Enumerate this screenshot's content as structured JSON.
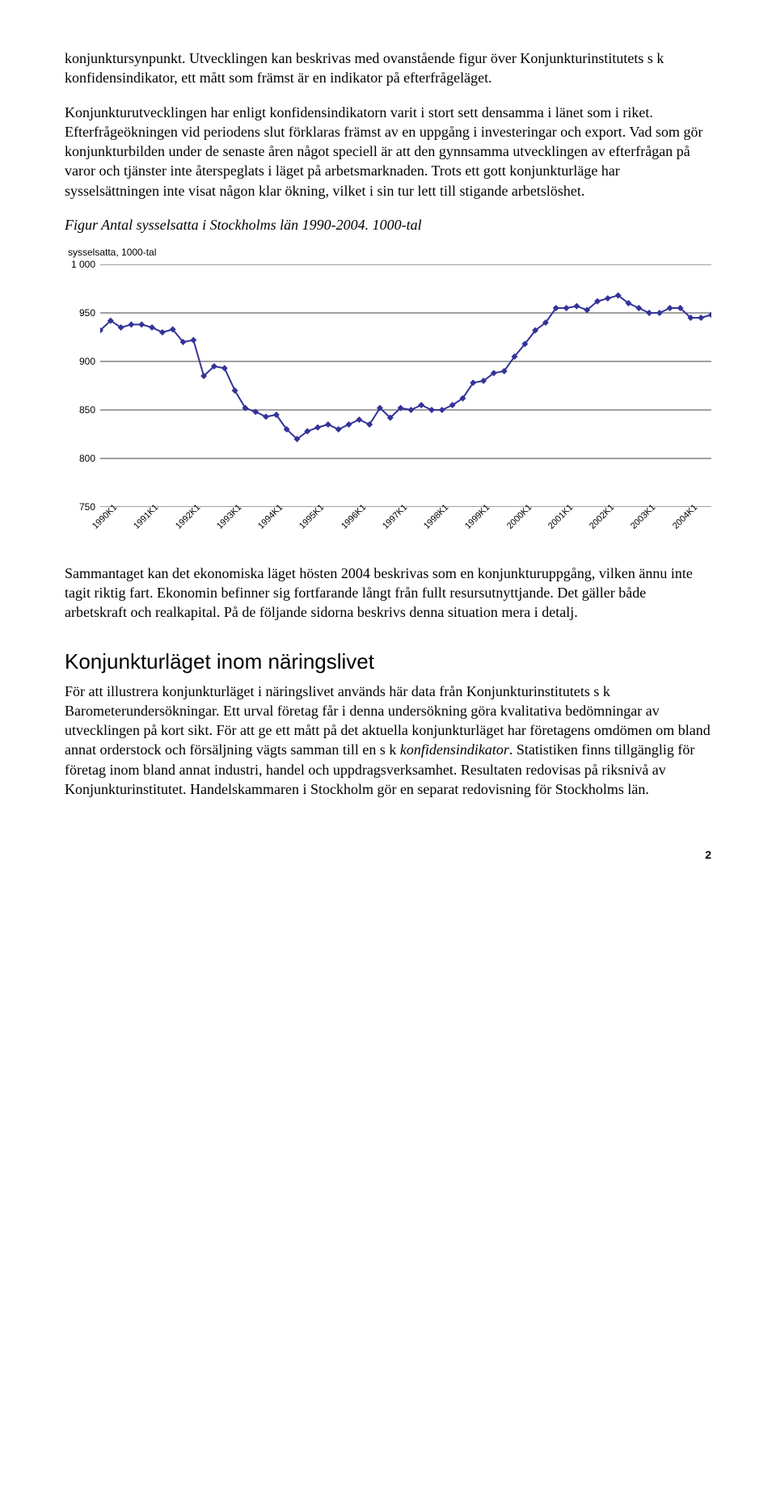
{
  "paragraphs": {
    "p1": "konjunktursynpunkt. Utvecklingen kan beskrivas med ovanstående figur över Konjunkturinstitutets s k konfidensindikator, ett mått som främst är en indikator på efterfrågeläget.",
    "p2": "Konjunkturutvecklingen har enligt konfidensindikatorn varit i stort sett densamma i länet som i riket. Efterfrågeökningen vid periodens slut förklaras främst av en uppgång i investeringar och export. Vad som gör konjunkturbilden under de senaste åren något speciell är att den gynnsamma utvecklingen av efterfrågan på varor och tjänster inte återspeglats i läget på arbetsmarknaden. Trots ett gott konjunkturläge har sysselsättningen inte visat någon klar ökning, vilket i sin tur lett till stigande arbetslöshet.",
    "fig_title": "Figur Antal sysselsatta i Stockholms län 1990-2004. 1000-tal",
    "p3": "Sammantaget kan det ekonomiska läget hösten 2004 beskrivas som en konjunkturuppgång, vilken ännu inte tagit riktig fart. Ekonomin befinner sig fortfarande långt från fullt resursutnyttjande. Det gäller både arbetskraft och realkapital. På de följande sidorna beskrivs denna situation mera i detalj.",
    "h2": "Konjunkturläget inom näringslivet",
    "p4_a": "För att illustrera konjunkturläget i näringslivet används här data från Konjunkturinstitutets s k Barometerundersökningar. Ett urval företag får i denna undersökning göra kvalitativa bedömningar av utvecklingen på kort sikt. För att ge ett mått på det aktuella konjunkturläget har företagens omdömen om bland annat orderstock och försäljning vägts samman till en s k ",
    "p4_italic": "konfidensindikator",
    "p4_b": ". Statistiken finns tillgänglig för företag inom bland annat industri, handel och uppdragsverksamhet. Resultaten redovisas på riksnivå av Konjunkturinstitutet. Handelskammaren i Stockholm gör en separat redovisning för Stockholms län."
  },
  "chart": {
    "type": "line",
    "y_axis_label": "sysselsatta, 1000-tal",
    "ylim": [
      750,
      1000
    ],
    "ytick_step": 50,
    "y_ticks": [
      "750",
      "800",
      "850",
      "900",
      "950",
      "1 000"
    ],
    "x_labels": [
      "1990K1",
      "1991K1",
      "1992K1",
      "1993K1",
      "1994K1",
      "1995K1",
      "1996K1",
      "1997K1",
      "1998K1",
      "1999K1",
      "2000K1",
      "2001K1",
      "2002K1",
      "2003K1",
      "2004K1"
    ],
    "line_color": "#333399",
    "marker_color": "#333399",
    "marker_size": 4,
    "line_width": 2,
    "grid_color": "#000000",
    "background_color": "#ffffff",
    "label_fontsize": 12,
    "values": [
      932,
      942,
      935,
      938,
      938,
      935,
      930,
      933,
      920,
      922,
      885,
      895,
      893,
      870,
      852,
      848,
      843,
      845,
      830,
      820,
      828,
      832,
      835,
      830,
      835,
      840,
      835,
      852,
      842,
      852,
      850,
      855,
      850,
      850,
      855,
      862,
      878,
      880,
      888,
      890,
      905,
      918,
      932,
      940,
      955,
      955,
      957,
      953,
      962,
      965,
      968,
      960,
      955,
      950,
      950,
      955,
      955,
      945,
      945,
      948
    ]
  },
  "page_number": "2"
}
